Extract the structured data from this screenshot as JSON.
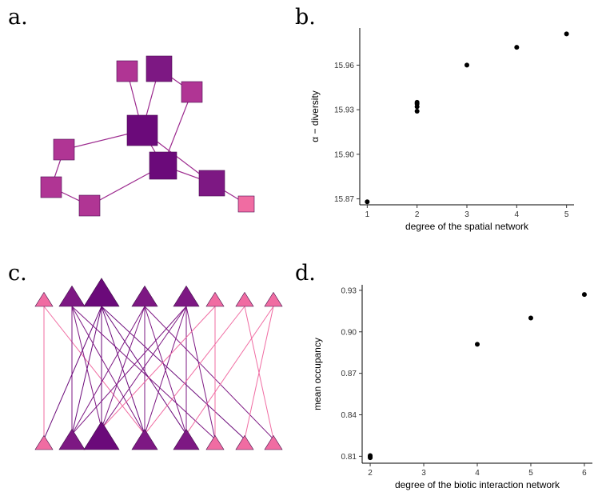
{
  "panels": {
    "a": "a.",
    "b": "b.",
    "c": "c.",
    "d": "d."
  },
  "colors": {
    "light": "#f06ca2",
    "mid": "#b03594",
    "dark": "#7d1883",
    "darkest": "#6b0a7a",
    "line_spatial": "#9c2a8e"
  },
  "chart_data": [
    {
      "panel": "b",
      "type": "scatter",
      "xlabel": "degree of the spatial network",
      "ylabel": "α − diversity",
      "xticks": [
        1,
        2,
        3,
        4,
        5
      ],
      "yticks": [
        "15.87",
        "15.90",
        "15.93",
        "15.96"
      ],
      "xlim": [
        0.85,
        5.15
      ],
      "ylim": [
        15.866,
        15.985
      ],
      "grid": false,
      "points": [
        {
          "x": 1,
          "y": 15.868
        },
        {
          "x": 2,
          "y": 15.929
        },
        {
          "x": 2,
          "y": 15.932
        },
        {
          "x": 2,
          "y": 15.934
        },
        {
          "x": 2,
          "y": 15.935
        },
        {
          "x": 3,
          "y": 15.96
        },
        {
          "x": 4,
          "y": 15.972
        },
        {
          "x": 5,
          "y": 15.981
        }
      ]
    },
    {
      "panel": "d",
      "type": "scatter",
      "xlabel": "degree of the biotic interaction network",
      "ylabel": "mean occupancy",
      "xticks": [
        2,
        3,
        4,
        5,
        6
      ],
      "yticks": [
        "0.81",
        "0.84",
        "0.87",
        "0.90",
        "0.93"
      ],
      "xlim": [
        1.85,
        6.15
      ],
      "ylim": [
        0.805,
        0.934
      ],
      "grid": false,
      "points": [
        {
          "x": 2,
          "y": 0.809
        },
        {
          "x": 2,
          "y": 0.8095
        },
        {
          "x": 2,
          "y": 0.81
        },
        {
          "x": 2,
          "y": 0.8105
        },
        {
          "x": 4,
          "y": 0.891
        },
        {
          "x": 5,
          "y": 0.91
        },
        {
          "x": 6,
          "y": 0.927
        }
      ]
    }
  ],
  "spatial_network": {
    "nodes": [
      {
        "id": "n1",
        "shade": "mid"
      },
      {
        "id": "n2",
        "shade": "dark"
      },
      {
        "id": "n3",
        "shade": "mid"
      },
      {
        "id": "n4",
        "shade": "darkest"
      },
      {
        "id": "n5",
        "shade": "mid"
      },
      {
        "id": "n6",
        "shade": "darkest"
      },
      {
        "id": "n7",
        "shade": "mid"
      },
      {
        "id": "n8",
        "shade": "dark"
      },
      {
        "id": "n9",
        "shade": "mid"
      },
      {
        "id": "n10",
        "shade": "light"
      }
    ],
    "edges": [
      [
        "n1",
        "n4"
      ],
      [
        "n2",
        "n4"
      ],
      [
        "n2",
        "n3"
      ],
      [
        "n3",
        "n6"
      ],
      [
        "n4",
        "n5"
      ],
      [
        "n4",
        "n6"
      ],
      [
        "n4",
        "n8"
      ],
      [
        "n5",
        "n7"
      ],
      [
        "n7",
        "n9"
      ],
      [
        "n6",
        "n9"
      ],
      [
        "n6",
        "n8"
      ],
      [
        "n8",
        "n10"
      ]
    ]
  },
  "biotic_network": {
    "top": [
      {
        "id": "t1",
        "shade": "light"
      },
      {
        "id": "t2",
        "shade": "dark"
      },
      {
        "id": "t3",
        "shade": "darkest"
      },
      {
        "id": "t4",
        "shade": "dark"
      },
      {
        "id": "t5",
        "shade": "dark"
      },
      {
        "id": "t6",
        "shade": "light"
      },
      {
        "id": "t7",
        "shade": "light"
      },
      {
        "id": "t8",
        "shade": "light"
      }
    ],
    "bottom": [
      {
        "id": "b1",
        "shade": "light"
      },
      {
        "id": "b2",
        "shade": "dark"
      },
      {
        "id": "b3",
        "shade": "darkest"
      },
      {
        "id": "b4",
        "shade": "dark"
      },
      {
        "id": "b5",
        "shade": "dark"
      },
      {
        "id": "b6",
        "shade": "light"
      },
      {
        "id": "b7",
        "shade": "light"
      },
      {
        "id": "b8",
        "shade": "light"
      }
    ],
    "edges": [
      [
        0,
        0
      ],
      [
        0,
        3
      ],
      [
        1,
        1
      ],
      [
        1,
        2
      ],
      [
        1,
        3
      ],
      [
        1,
        5
      ],
      [
        2,
        0
      ],
      [
        2,
        1
      ],
      [
        2,
        2
      ],
      [
        2,
        3
      ],
      [
        2,
        4
      ],
      [
        2,
        6
      ],
      [
        3,
        1
      ],
      [
        3,
        2
      ],
      [
        3,
        3
      ],
      [
        3,
        4
      ],
      [
        3,
        7
      ],
      [
        4,
        2
      ],
      [
        4,
        3
      ],
      [
        4,
        4
      ],
      [
        4,
        5
      ],
      [
        4,
        1
      ],
      [
        5,
        5
      ],
      [
        5,
        2
      ],
      [
        6,
        3
      ],
      [
        6,
        7
      ],
      [
        7,
        4
      ],
      [
        7,
        6
      ]
    ]
  }
}
